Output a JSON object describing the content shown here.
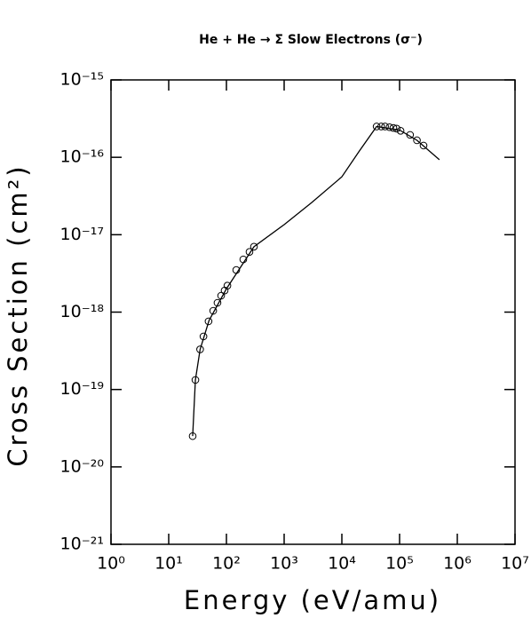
{
  "chart_data": {
    "type": "line",
    "title": "He + He → Σ Slow Electrons (σ⁻)",
    "x_label": "Energy (eV/amu)",
    "y_label": "Cross Section (cm²)",
    "x_log": true,
    "y_log": true,
    "xlim": [
      1,
      10000000
    ],
    "ylim": [
      1e-21,
      1e-15
    ],
    "xticks": [
      {
        "value": 1,
        "label": "10⁰"
      },
      {
        "value": 10,
        "label": "10¹"
      },
      {
        "value": 100,
        "label": "10²"
      },
      {
        "value": 1000,
        "label": "10³"
      },
      {
        "value": 10000,
        "label": "10⁴"
      },
      {
        "value": 100000,
        "label": "10⁵"
      },
      {
        "value": 1000000,
        "label": "10⁶"
      },
      {
        "value": 10000000,
        "label": "10⁷"
      }
    ],
    "yticks": [
      {
        "value": 1e-21,
        "label": "10⁻²¹"
      },
      {
        "value": 1e-20,
        "label": "10⁻²⁰"
      },
      {
        "value": 1e-19,
        "label": "10⁻¹⁹"
      },
      {
        "value": 1e-18,
        "label": "10⁻¹⁸"
      },
      {
        "value": 1e-17,
        "label": "10⁻¹⁷"
      },
      {
        "value": 1e-16,
        "label": "10⁻¹⁶"
      },
      {
        "value": 1e-15,
        "label": "10⁻¹⁵"
      }
    ],
    "series": [
      {
        "type": "line",
        "color": "#000000",
        "x": [
          26,
          29,
          35,
          50,
          100,
          300,
          1000,
          3000,
          10000,
          20000,
          40000,
          100000,
          200000,
          490000
        ],
        "values": [
          2.5e-20,
          1.33e-19,
          3.3e-19,
          7.8e-19,
          2e-18,
          7e-18,
          1.35e-17,
          2.6e-17,
          5.6e-17,
          1.2e-16,
          2.5e-16,
          2.25e-16,
          1.66e-16,
          9.3e-17
        ]
      },
      {
        "type": "scatter",
        "color": "#000000",
        "x": [
          26,
          29,
          35,
          40,
          49,
          59,
          70,
          81,
          93,
          104,
          148,
          196,
          251,
          300,
          40000,
          48000,
          56000,
          67000,
          78000,
          89000,
          104000,
          152000,
          200000,
          260000
        ],
        "values": [
          2.5e-20,
          1.33e-19,
          3.3e-19,
          4.85e-19,
          7.6e-19,
          1.04e-18,
          1.32e-18,
          1.63e-18,
          1.9e-18,
          2.2e-18,
          3.5e-18,
          4.8e-18,
          6e-18,
          7e-18,
          2.5e-16,
          2.5e-16,
          2.5e-16,
          2.45e-16,
          2.4e-16,
          2.35e-16,
          2.2e-16,
          1.95e-16,
          1.66e-16,
          1.42e-16
        ]
      }
    ]
  }
}
